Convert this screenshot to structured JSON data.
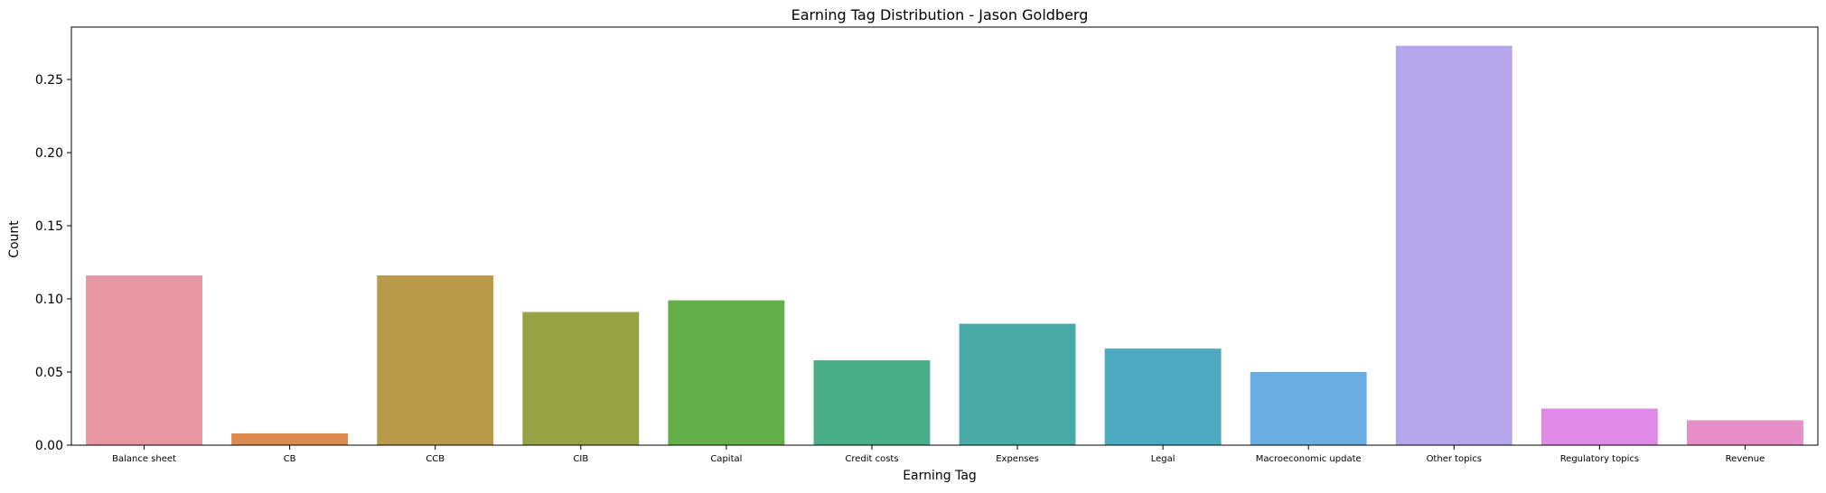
{
  "chart_data": {
    "type": "bar",
    "title": "Earning Tag Distribution - Jason Goldberg",
    "xlabel": "Earning Tag",
    "ylabel": "Count",
    "ylim": [
      0,
      0.2858
    ],
    "yticks": [
      "0.00",
      "0.05",
      "0.10",
      "0.15",
      "0.20",
      "0.25"
    ],
    "ytick_values": [
      0,
      0.05,
      0.1,
      0.15,
      0.2,
      0.25
    ],
    "grid": false,
    "categories": [
      "Balance sheet",
      "CB",
      "CCB",
      "CIB",
      "Capital",
      "Credit costs",
      "Expenses",
      "Legal",
      "Macroeconomic update",
      "Other topics",
      "Regulatory topics",
      "Revenue"
    ],
    "values": [
      0.116,
      0.008,
      0.116,
      0.091,
      0.099,
      0.058,
      0.083,
      0.066,
      0.05,
      0.273,
      0.025,
      0.017
    ],
    "colors": [
      "#e996a3",
      "#db8a4b",
      "#b89a48",
      "#97a245",
      "#63b04a",
      "#4aaf88",
      "#4aaaa5",
      "#4daac0",
      "#6aaee2",
      "#b5a6eb",
      "#df8ae7",
      "#e78ec6"
    ]
  }
}
